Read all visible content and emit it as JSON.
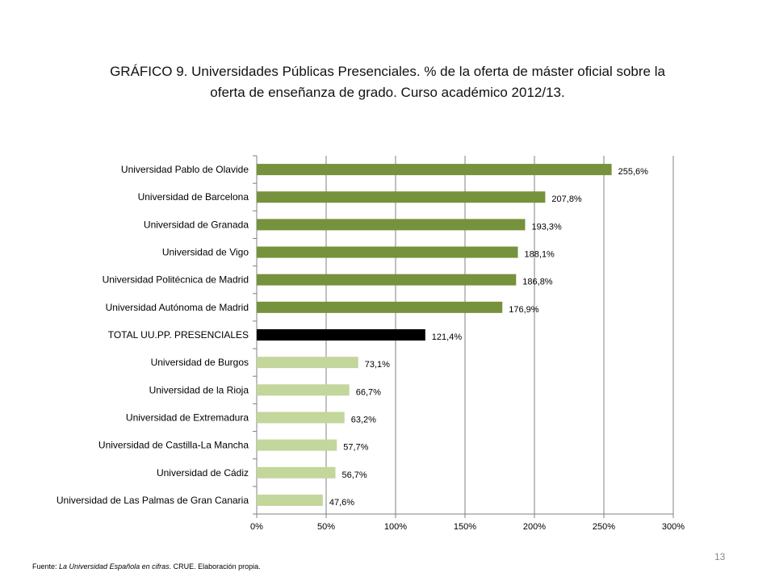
{
  "title_line1": "GRÁFICO 9. Universidades Públicas Presenciales. % de la oferta de máster oficial sobre la",
  "title_line2": "oferta de enseñanza de grado. Curso académico 2012/13.",
  "footer": {
    "prefix": "Fuente: ",
    "source_italic": "La Universidad Española en cifras",
    "suffix": ". CRUE. Elaboración propia."
  },
  "page_number": "13",
  "chart_data": {
    "type": "bar",
    "orientation": "horizontal",
    "categories": [
      "Universidad Pablo de Olavide",
      "Universidad de Barcelona",
      "Universidad de Granada",
      "Universidad de Vigo",
      "Universidad Politécnica de Madrid",
      "Universidad Autónoma de Madrid",
      "TOTAL UU.PP. PRESENCIALES",
      "Universidad de Burgos",
      "Universidad de la Rioja",
      "Universidad de Extremadura",
      "Universidad de Castilla-La Mancha",
      "Universidad de Cádiz",
      "Universidad de Las Palmas de Gran Canaria"
    ],
    "values": [
      255.6,
      207.8,
      193.3,
      188.1,
      186.8,
      176.9,
      121.4,
      73.1,
      66.7,
      63.2,
      57.7,
      56.7,
      47.6
    ],
    "data_labels": [
      "255,6%",
      "207,8%",
      "193,3%",
      "188,1%",
      "186,8%",
      "176,9%",
      "121,4%",
      "73,1%",
      "66,7%",
      "63,2%",
      "57,7%",
      "56,7%",
      "47,6%"
    ],
    "bar_colors": [
      "#76923c",
      "#76923c",
      "#76923c",
      "#76923c",
      "#76923c",
      "#76923c",
      "#000000",
      "#c3d69b",
      "#c3d69b",
      "#c3d69b",
      "#c3d69b",
      "#c3d69b",
      "#c3d69b"
    ],
    "x_ticks": [
      0,
      50,
      100,
      150,
      200,
      250,
      300
    ],
    "x_tick_labels": [
      "0%",
      "50%",
      "100%",
      "150%",
      "200%",
      "250%",
      "300%"
    ],
    "xlim": [
      0,
      300
    ],
    "grid": true,
    "gridline_color": "#808080"
  }
}
